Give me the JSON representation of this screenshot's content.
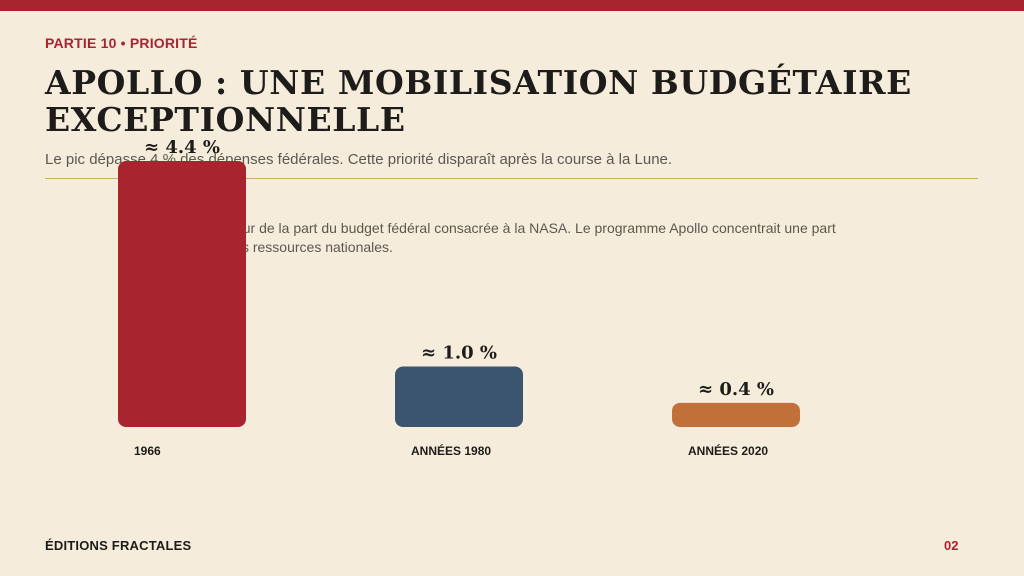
{
  "kicker": "PARTIE 10 • PRIORITÉ",
  "title": "APOLLO : UNE MOBILISATION BUDGÉTAIRE EXCEPTIONNELLE",
  "subtitle": "Le pic dépasse 4 % des dépenses fédérales. Cette priorité disparaît après la course à la Lune.",
  "note": "Ordres de grandeur de la part du budget fédéral consacrée à la NASA. Le programme Apollo concentrait une part exceptionnelle des ressources nationales.",
  "footer": {
    "brand": "ÉDITIONS FRACTALES",
    "page": "02"
  },
  "colors": {
    "accent": "#a8242f",
    "rule": "#cfae62",
    "background": "#f5ecdb"
  },
  "chart_data": {
    "type": "bar",
    "categories": [
      "1966",
      "ANNÉES 1980",
      "ANNÉES 2020"
    ],
    "values": [
      4.4,
      1.0,
      0.4
    ],
    "value_labels": [
      "≈ 4.4 %",
      "≈ 1.0 %",
      "≈ 0.4 %"
    ],
    "bar_colors": [
      "#a8242f",
      "#3b5571",
      "#c1703a"
    ],
    "ylim": [
      0,
      4.4
    ],
    "grid": false,
    "legend": "none"
  }
}
